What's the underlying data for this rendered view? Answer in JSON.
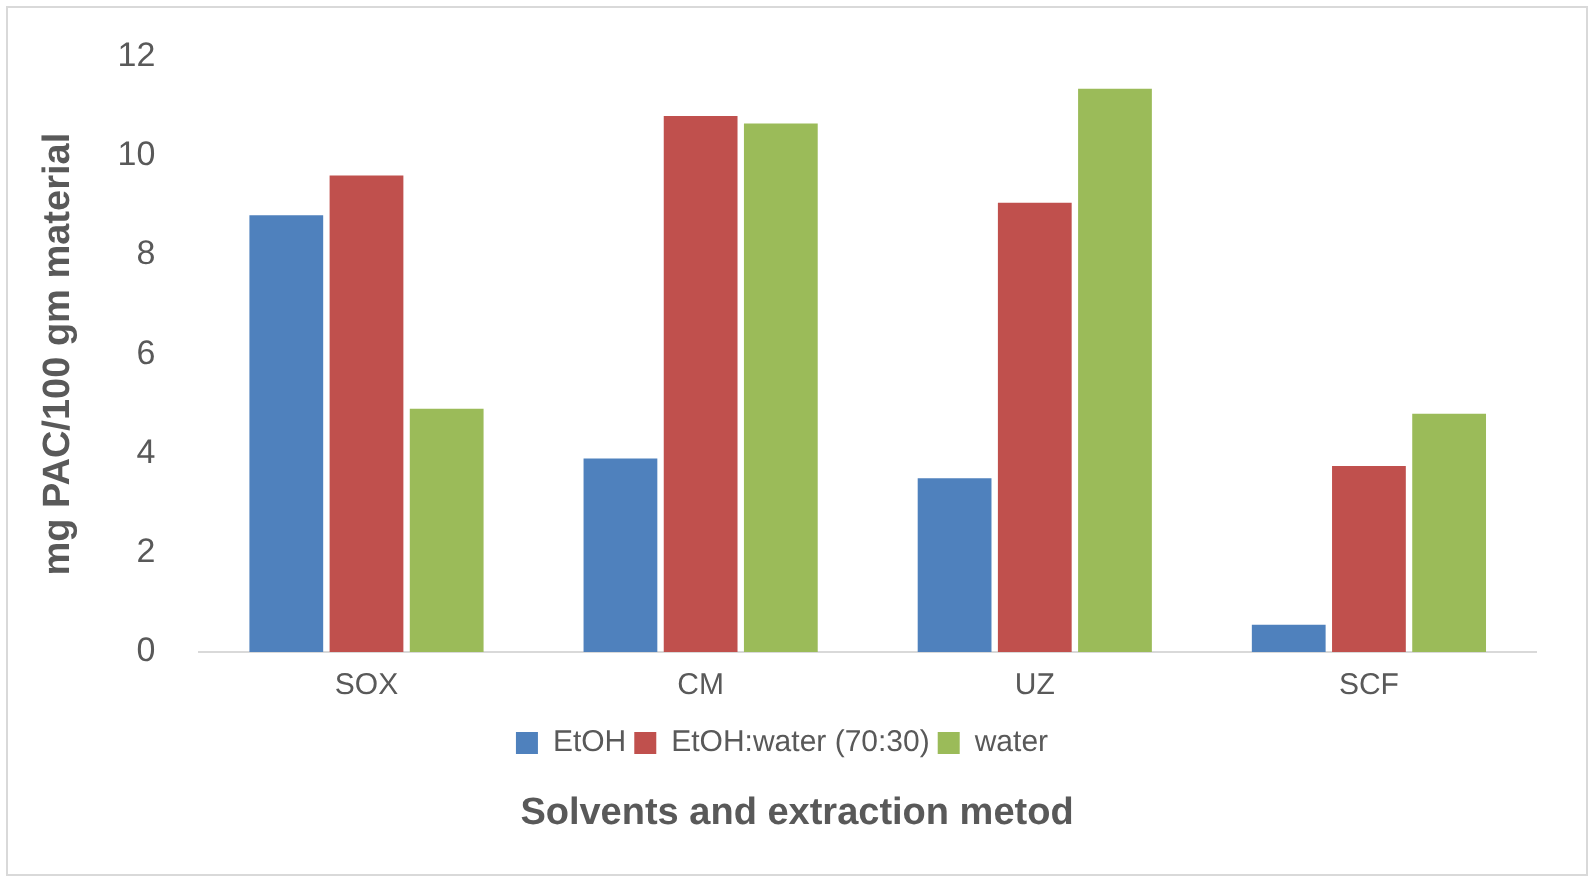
{
  "chart_data": {
    "type": "bar",
    "xlabel": "Solvents and extraction metod",
    "ylabel": "mg PAC/100 gm material",
    "categories": [
      "SOX",
      "CM",
      "UZ",
      "SCF"
    ],
    "series": [
      {
        "name": "EtOH",
        "color": "#4f81bd",
        "values": [
          8.8,
          3.9,
          3.5,
          0.55
        ]
      },
      {
        "name": "EtOH:water (70:30)",
        "color": "#c0504d",
        "values": [
          9.6,
          10.8,
          9.05,
          3.75
        ]
      },
      {
        "name": "water",
        "color": "#9bbb59",
        "values": [
          4.9,
          10.65,
          11.35,
          4.8
        ]
      }
    ],
    "ylim": [
      0,
      12
    ],
    "yticks": [
      0,
      2,
      4,
      6,
      8,
      10,
      12
    ],
    "grid": false,
    "legend": "bottom"
  }
}
